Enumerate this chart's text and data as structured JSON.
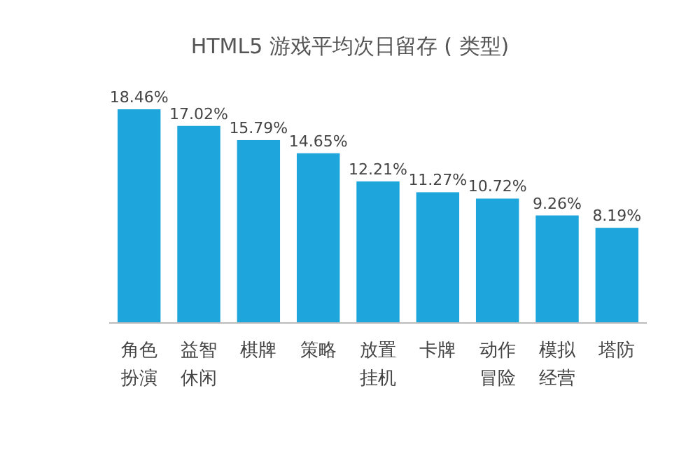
{
  "chart_data": {
    "type": "bar",
    "title": "HTML5 游戏平均次日留存 ( 类型)",
    "categories": [
      "角色扮演",
      "益智休闲",
      "棋牌",
      "策略",
      "放置挂机",
      "卡牌",
      "动作冒险",
      "模拟经营",
      "塔防"
    ],
    "values": [
      18.46,
      17.02,
      15.79,
      14.65,
      12.21,
      11.27,
      10.72,
      9.26,
      8.19
    ],
    "value_labels": [
      "18.46%",
      "17.02%",
      "15.79%",
      "14.65%",
      "12.21%",
      "11.27%",
      "10.72%",
      "9.26%",
      "8.19%"
    ],
    "color": "#1ea6dc"
  }
}
